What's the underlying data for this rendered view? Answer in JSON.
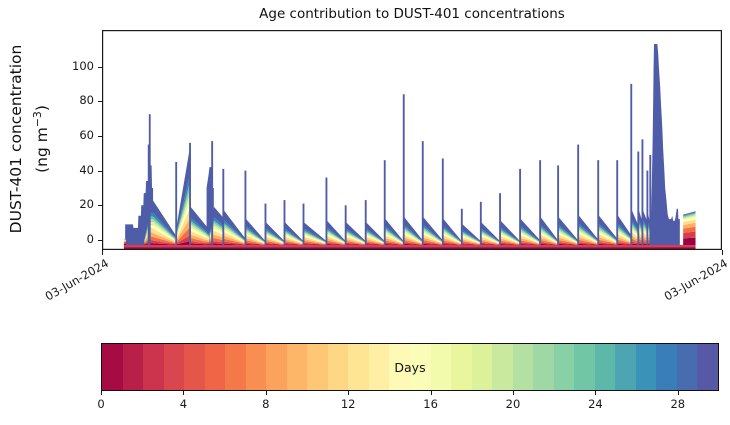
{
  "title": "Age contribution to DUST-401 concentrations",
  "y_axis": {
    "label_line1": "DUST-401 concentration",
    "label_line2_pre": "(ng m",
    "label_line2_sup": "−3",
    "label_line2_post": ")",
    "ticks": [
      0,
      20,
      40,
      60,
      80,
      100
    ]
  },
  "x_axis": {
    "start_label": "03-Jun-2024",
    "end_label": "03-Jun-2024"
  },
  "colorbar": {
    "label": "Days",
    "ticks": [
      0,
      4,
      8,
      12,
      16,
      20,
      24,
      28
    ],
    "vmin": 0,
    "vmax": 30,
    "segment_colors": [
      "#a70b44",
      "#b92049",
      "#cc344d",
      "#da464d",
      "#e45649",
      "#ef6545",
      "#f57848",
      "#f98e52",
      "#fba35c",
      "#fdb668",
      "#fdc776",
      "#fed784",
      "#fee594",
      "#feefa5",
      "#fff9b6",
      "#fafdb8",
      "#f2faab",
      "#eaf69e",
      "#dcf19a",
      "#c8e99e",
      "#b4e1a2",
      "#9fd8a4",
      "#88d0a5",
      "#71c6a5",
      "#5db8a9",
      "#4ca5b1",
      "#3b92b9",
      "#397eb8",
      "#486cb0",
      "#5759a7"
    ]
  },
  "chart_data": {
    "type": "area",
    "title": "Age contribution to DUST-401 concentrations",
    "ylabel": "DUST-401 concentration (ng m⁻³)",
    "xlabel": "",
    "x_tick_labels": [
      "03-Jun-2024",
      "03-Jun-2024"
    ],
    "xlim_days": [
      0,
      30
    ],
    "ylim": [
      -5.75,
      120.75
    ],
    "y_ticks": [
      0,
      20,
      40,
      60,
      80,
      100
    ],
    "grid": false,
    "legend": "colorbar-bottom",
    "colorbar_label": "Days",
    "colorbar_range": [
      0,
      30
    ],
    "spike_color": "#4f5ca8",
    "band_colors": [
      "#9e0142",
      "#d53e4f",
      "#f46d43",
      "#fdae61",
      "#fee08b",
      "#ffffbf",
      "#e6f598",
      "#abdda4",
      "#66c2a5",
      "#3288bd",
      "#4f5ca8"
    ],
    "age_fractions": [
      0.04,
      0.06,
      0.08,
      0.09,
      0.1,
      0.08,
      0.07,
      0.06,
      0.06,
      0.08,
      0.28
    ],
    "fresh_fractions": [
      0.22,
      0.18,
      0.14,
      0.12,
      0.1,
      0.07,
      0.05,
      0.04,
      0.03,
      0.025,
      0.025
    ],
    "baseline": {
      "from_day": 1.06,
      "to_day": 28.72,
      "layers": [
        {
          "color": "#9e0142",
          "v0": -5.3,
          "v1": -4.1
        },
        {
          "color": "#d5404e",
          "v0": -4.1,
          "v1": -2.9
        }
      ]
    },
    "stack_base_value": -2.9,
    "blue_segments": [
      [
        [
          1.12,
          9
        ],
        [
          1.5,
          9
        ],
        [
          1.52,
          7
        ],
        [
          1.74,
          7
        ],
        [
          1.76,
          14
        ],
        [
          1.88,
          14
        ],
        [
          1.9,
          20
        ],
        [
          2.0,
          20
        ],
        [
          2.02,
          27
        ],
        [
          2.11,
          27
        ],
        [
          2.13,
          34
        ],
        [
          2.23,
          34
        ]
      ],
      [
        [
          2.33,
          43
        ],
        [
          2.4,
          43
        ],
        [
          2.42,
          30
        ],
        [
          2.47,
          30
        ]
      ],
      [
        [
          5.06,
          30
        ],
        [
          5.16,
          38
        ],
        [
          5.2,
          42
        ],
        [
          5.32,
          42
        ],
        [
          5.36,
          30
        ],
        [
          5.41,
          30
        ]
      ],
      [
        [
          26.56,
          14
        ],
        [
          26.6,
          30
        ],
        [
          26.64,
          55
        ],
        [
          26.67,
          80
        ],
        [
          26.69,
          100
        ],
        [
          26.71,
          113
        ],
        [
          26.87,
          113
        ],
        [
          26.91,
          108
        ],
        [
          26.95,
          99
        ],
        [
          27.01,
          88
        ],
        [
          27.05,
          78
        ],
        [
          27.11,
          65
        ],
        [
          27.15,
          53
        ],
        [
          27.21,
          40
        ],
        [
          27.25,
          30
        ],
        [
          27.31,
          23
        ],
        [
          27.37,
          15
        ],
        [
          27.43,
          12
        ],
        [
          27.54,
          12
        ],
        [
          27.59,
          14
        ],
        [
          27.64,
          11
        ],
        [
          27.71,
          11
        ],
        [
          27.75,
          13
        ],
        [
          27.81,
          18
        ],
        [
          27.87,
          18
        ],
        [
          27.89,
          12
        ],
        [
          27.96,
          12
        ]
      ]
    ],
    "rainbow_segments": [
      [
        [
          2.05,
          5
        ],
        [
          2.32,
          26
        ],
        [
          2.45,
          26
        ],
        [
          3.55,
          6
        ]
      ],
      [
        [
          3.57,
          8
        ],
        [
          4.25,
          56
        ],
        [
          4.29,
          22
        ],
        [
          5.18,
          9
        ]
      ],
      [
        [
          5.2,
          10
        ],
        [
          5.42,
          22
        ],
        [
          5.85,
          16
        ]
      ],
      [
        [
          5.9,
          20
        ],
        [
          6.92,
          4
        ]
      ],
      [
        [
          6.97,
          15
        ],
        [
          7.89,
          2.5
        ]
      ],
      [
        [
          7.94,
          13
        ],
        [
          8.81,
          2.5
        ]
      ],
      [
        [
          8.86,
          13
        ],
        [
          9.73,
          2.5
        ]
      ],
      [
        [
          9.78,
          13
        ],
        [
          10.84,
          2.5
        ]
      ],
      [
        [
          10.89,
          14
        ],
        [
          11.77,
          2.5
        ]
      ],
      [
        [
          11.82,
          13
        ],
        [
          12.74,
          2.5
        ]
      ],
      [
        [
          12.79,
          13
        ],
        [
          13.66,
          2.5
        ]
      ],
      [
        [
          13.71,
          15
        ],
        [
          14.58,
          2.5
        ]
      ],
      [
        [
          14.63,
          16
        ],
        [
          15.5,
          3
        ]
      ],
      [
        [
          15.55,
          16
        ],
        [
          16.47,
          3
        ]
      ],
      [
        [
          16.52,
          15
        ],
        [
          17.39,
          2.5
        ]
      ],
      [
        [
          17.44,
          12
        ],
        [
          18.31,
          2.5
        ]
      ],
      [
        [
          18.36,
          13
        ],
        [
          19.24,
          2.5
        ]
      ],
      [
        [
          19.29,
          14
        ],
        [
          20.21,
          2.5
        ]
      ],
      [
        [
          20.26,
          15
        ],
        [
          21.18,
          3
        ]
      ],
      [
        [
          21.23,
          16
        ],
        [
          22.05,
          3
        ]
      ],
      [
        [
          22.1,
          16
        ],
        [
          23.02,
          3
        ]
      ],
      [
        [
          23.07,
          17
        ],
        [
          23.99,
          3.5
        ]
      ],
      [
        [
          24.04,
          17
        ],
        [
          24.91,
          4
        ]
      ],
      [
        [
          24.96,
          17
        ],
        [
          25.59,
          6
        ]
      ],
      [
        [
          25.64,
          20
        ],
        [
          25.93,
          12
        ]
      ],
      [
        [
          25.98,
          20
        ],
        [
          26.13,
          14
        ]
      ],
      [
        [
          26.18,
          20
        ],
        [
          26.37,
          14
        ]
      ],
      [
        [
          26.41,
          18
        ],
        [
          26.51,
          14
        ]
      ]
    ],
    "fresh_segments": [
      [
        [
          1.06,
          3.5
        ],
        [
          1.16,
          3.5
        ]
      ],
      [
        [
          28.12,
          17.5
        ],
        [
          28.72,
          19.5
        ]
      ]
    ],
    "spikes": [
      [
        2.26,
        55
      ],
      [
        2.31,
        72.5
      ],
      [
        3.59,
        45
      ],
      [
        4.26,
        56
      ],
      [
        5.33,
        57
      ],
      [
        5.87,
        41
      ],
      [
        6.94,
        40
      ],
      [
        7.91,
        21
      ],
      [
        8.83,
        23
      ],
      [
        9.75,
        21
      ],
      [
        10.86,
        36
      ],
      [
        11.79,
        20
      ],
      [
        12.76,
        23
      ],
      [
        13.68,
        46
      ],
      [
        14.6,
        84
      ],
      [
        15.52,
        57
      ],
      [
        16.49,
        47
      ],
      [
        17.41,
        18
      ],
      [
        18.33,
        22
      ],
      [
        19.26,
        27
      ],
      [
        20.23,
        41
      ],
      [
        21.2,
        46
      ],
      [
        22.07,
        43
      ],
      [
        23.04,
        55
      ],
      [
        24.01,
        46
      ],
      [
        24.93,
        46
      ],
      [
        25.61,
        90
      ],
      [
        25.95,
        51
      ],
      [
        26.15,
        58
      ],
      [
        26.39,
        40
      ],
      [
        26.53,
        49
      ]
    ],
    "default_spike_width_days": 0.09
  }
}
